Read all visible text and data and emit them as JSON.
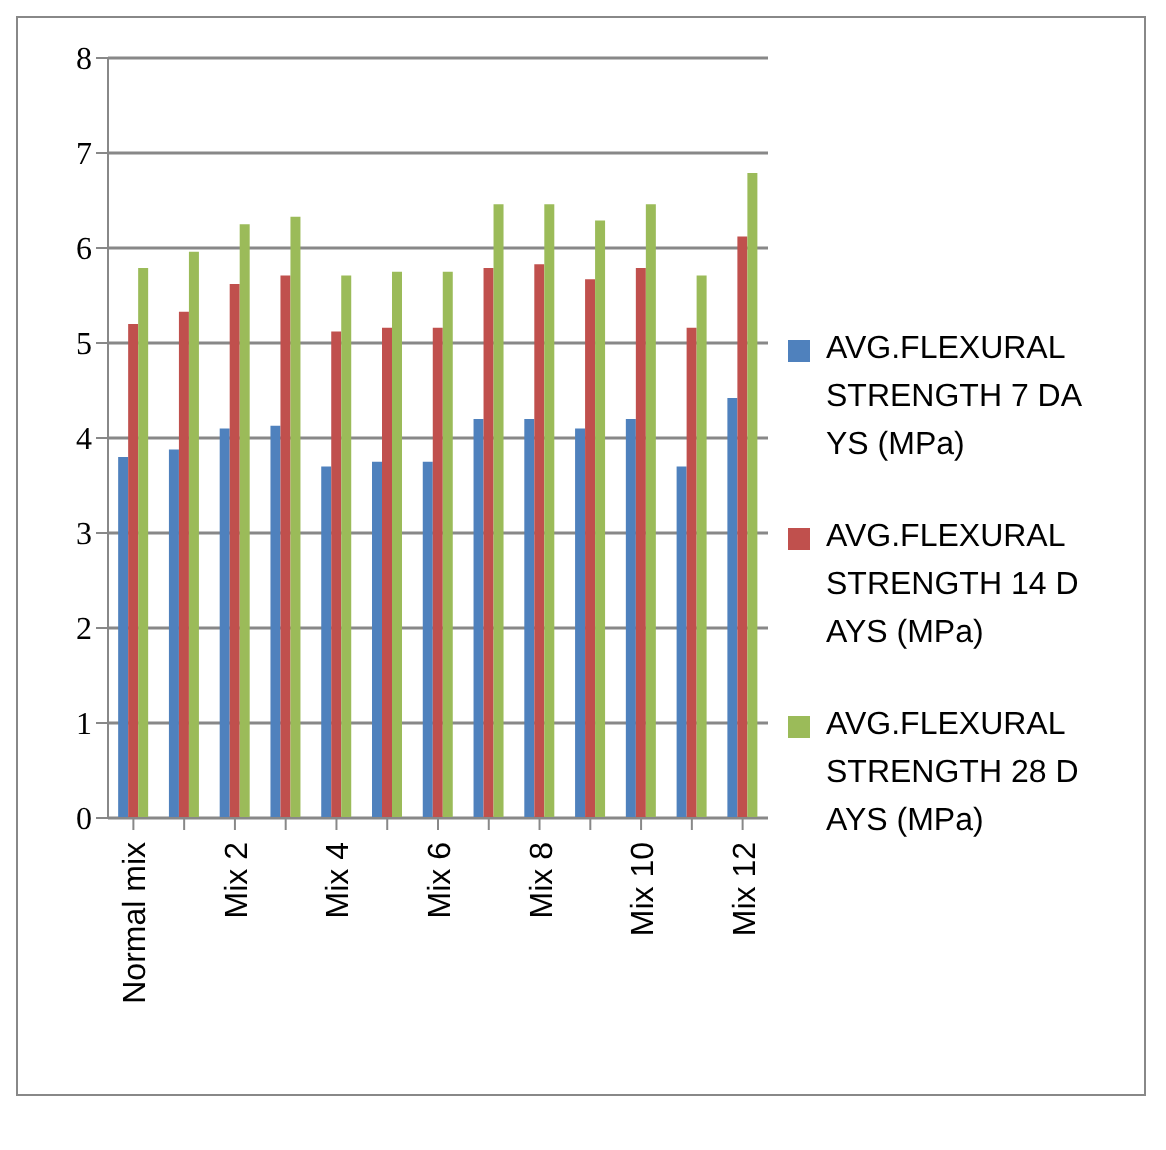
{
  "chart_data": {
    "type": "bar",
    "categories": [
      "Normal mix",
      null,
      "Mix 2",
      null,
      "Mix 4",
      null,
      "Mix 6",
      null,
      "Mix 8",
      null,
      "Mix 10",
      null,
      "Mix 12"
    ],
    "series": [
      {
        "name": "AVG.FLEXURAL STRENGTH 7 DAYS (MPa)",
        "color": "#4f81bd",
        "values": [
          3.8,
          3.88,
          4.1,
          4.13,
          3.7,
          3.75,
          3.75,
          4.2,
          4.2,
          4.1,
          4.2,
          3.7,
          4.42
        ]
      },
      {
        "name": "AVG.FLEXURAL STRENGTH 14 DAYS (MPa)",
        "color": "#c0504d",
        "values": [
          5.2,
          5.33,
          5.62,
          5.71,
          5.12,
          5.16,
          5.16,
          5.79,
          5.83,
          5.67,
          5.79,
          5.16,
          6.12
        ]
      },
      {
        "name": "AVG.FLEXURAL STRENGTH 28 DAYS (MPa)",
        "color": "#9bbb59",
        "values": [
          5.79,
          5.96,
          6.25,
          6.33,
          5.71,
          5.75,
          5.75,
          6.46,
          6.46,
          6.29,
          6.46,
          5.71,
          6.79
        ]
      }
    ],
    "ylim": [
      0,
      8
    ],
    "yticks": [
      0,
      1,
      2,
      3,
      4,
      5,
      6,
      7,
      8
    ],
    "grid": "y",
    "legend": "right"
  }
}
